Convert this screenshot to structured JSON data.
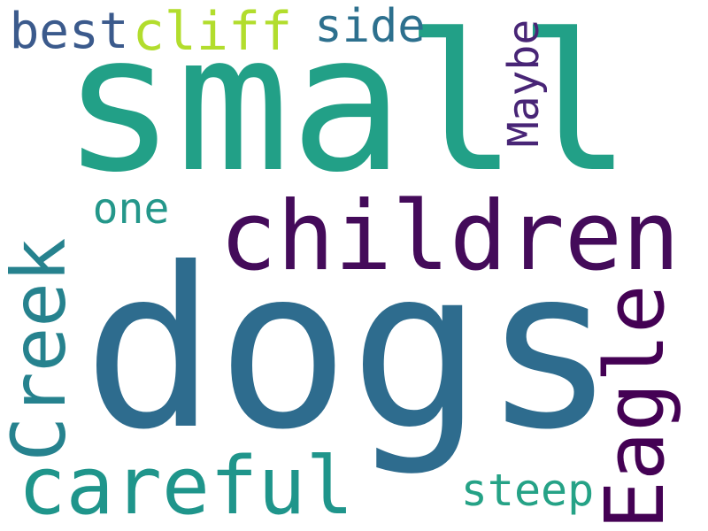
{
  "words": {
    "small": {
      "text": "small",
      "color": "#22a087"
    },
    "dogs": {
      "text": "dogs",
      "color": "#2e6c8e"
    },
    "children": {
      "text": "children",
      "color": "#440b5a"
    },
    "careful": {
      "text": "careful",
      "color": "#1f958b"
    },
    "creek": {
      "text": "Creek",
      "color": "#26828e"
    },
    "eagle": {
      "text": "Eagle",
      "color": "#440154"
    },
    "best": {
      "text": "best",
      "color": "#3b5a8c"
    },
    "cliff": {
      "text": "cliff",
      "color": "#b2dd2d"
    },
    "side": {
      "text": "side",
      "color": "#2d708e"
    },
    "maybe": {
      "text": "Maybe",
      "color": "#482576"
    },
    "one": {
      "text": "one",
      "color": "#24978a"
    },
    "steep": {
      "text": "steep",
      "color": "#25a286"
    }
  }
}
